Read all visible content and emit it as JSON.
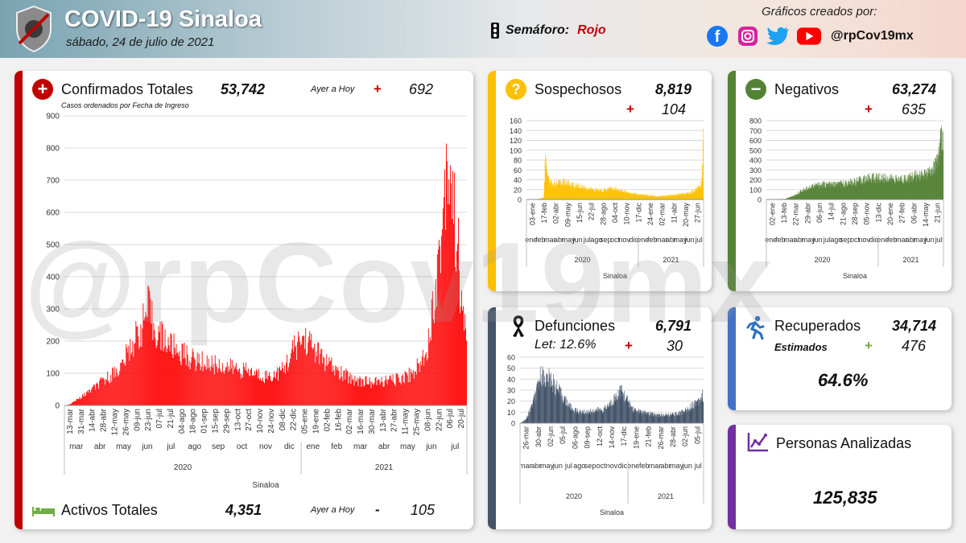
{
  "header": {
    "title": "COVID-19 Sinaloa",
    "date": "sábado, 24 de julio de 2021",
    "semaforo_label": "Semáforo:",
    "semaforo_value": "Rojo",
    "credits": "Gráficos creados por:",
    "handle": "@rpCov19mx",
    "icons": [
      "facebook-icon",
      "instagram-icon",
      "twitter-icon",
      "youtube-icon"
    ],
    "colors": {
      "facebook": "#1877f2",
      "instagram": "#d6249f",
      "twitter": "#1da1f2",
      "youtube": "#ff0000"
    }
  },
  "watermark": "@rpCov19mx",
  "confirmados": {
    "title": "Confirmados Totales",
    "total": "53,742",
    "ayer_label": "Ayer a Hoy",
    "sign": "+",
    "delta": "692",
    "subtitle": "Casos ordenados por Fecha de Ingreso",
    "color": "#c00000"
  },
  "activos": {
    "title": "Activos Totales",
    "total": "4,351",
    "ayer_label": "Ayer a Hoy",
    "sign": "-",
    "delta": "105"
  },
  "sospechosos": {
    "title": "Sospechosos",
    "total": "8,819",
    "sign": "+",
    "delta": "104",
    "color": "#ffc000"
  },
  "negativos": {
    "title": "Negativos",
    "total": "63,274",
    "sign": "+",
    "delta": "635",
    "color": "#548235"
  },
  "defunciones": {
    "title": "Defunciones",
    "total": "6,791",
    "letalidad": "Let: 12.6%",
    "sign": "+",
    "delta": "30",
    "color": "#44546a"
  },
  "recuperados": {
    "title": "Recuperados",
    "total": "34,714",
    "subtitle": "Estimados",
    "sign": "+",
    "delta": "476",
    "percent": "64.6%",
    "color": "#4472c4"
  },
  "analizadas": {
    "title": "Personas Analizadas",
    "total": "125,835",
    "color": "#7030a0"
  },
  "chart_data": [
    {
      "id": "confirmados",
      "type": "bar",
      "color": "#ff0000",
      "ylim": [
        0,
        900
      ],
      "yticks": [
        0,
        100,
        200,
        300,
        400,
        500,
        600,
        700,
        800,
        900
      ],
      "date_start": "2020-03-13",
      "date_end": "2021-07-23",
      "daily_profile": [
        [
          0,
          0
        ],
        [
          6,
          3
        ],
        [
          20,
          25
        ],
        [
          45,
          70
        ],
        [
          70,
          120
        ],
        [
          85,
          200
        ],
        [
          95,
          240
        ],
        [
          100,
          280
        ],
        [
          104,
          305
        ],
        [
          110,
          240
        ],
        [
          125,
          200
        ],
        [
          140,
          170
        ],
        [
          160,
          140
        ],
        [
          180,
          130
        ],
        [
          200,
          120
        ],
        [
          220,
          110
        ],
        [
          240,
          95
        ],
        [
          255,
          90
        ],
        [
          270,
          110
        ],
        [
          285,
          180
        ],
        [
          295,
          210
        ],
        [
          305,
          190
        ],
        [
          320,
          140
        ],
        [
          340,
          100
        ],
        [
          360,
          80
        ],
        [
          380,
          70
        ],
        [
          410,
          80
        ],
        [
          430,
          100
        ],
        [
          440,
          130
        ],
        [
          450,
          200
        ],
        [
          460,
          400
        ],
        [
          467,
          550
        ],
        [
          472,
          770
        ],
        [
          477,
          730
        ],
        [
          482,
          580
        ],
        [
          487,
          470
        ],
        [
          490,
          300
        ],
        [
          496,
          250
        ]
      ],
      "xtick_labels": [
        "13-mar",
        "31-mar",
        "14-abr",
        "28-abr",
        "12-may",
        "26-may",
        "09-jun",
        "23-jun",
        "07-jul",
        "21-jul",
        "04-ago",
        "18-ago",
        "01-sep",
        "15-sep",
        "29-sep",
        "13-oct",
        "27-oct",
        "10-nov",
        "24-nov",
        "08-dic",
        "22-dic",
        "05-ene",
        "19-ene",
        "02-feb",
        "16-feb",
        "02-mar",
        "16-mar",
        "30-mar",
        "13-abr",
        "27-abr",
        "11-may",
        "25-may",
        "08-jun",
        "22-jun",
        "06-jul",
        "20-jul"
      ],
      "months": [
        "mar",
        "abr",
        "may",
        "jun",
        "jul",
        "ago",
        "sep",
        "oct",
        "nov",
        "dic",
        "ene",
        "feb",
        "mar",
        "abr",
        "may",
        "jun",
        "jul"
      ],
      "years": [
        "2020",
        "2021"
      ],
      "xlabel": "Sinaloa"
    },
    {
      "id": "sospechosos",
      "type": "bar",
      "color": "#ffc000",
      "ylim": [
        0,
        160
      ],
      "yticks": [
        0,
        20,
        40,
        60,
        80,
        100,
        120,
        140,
        160
      ],
      "date_start": "2020-01-03",
      "date_end": "2021-07-23",
      "daily_profile": [
        [
          0,
          0
        ],
        [
          40,
          1
        ],
        [
          55,
          4
        ],
        [
          60,
          80
        ],
        [
          66,
          60
        ],
        [
          72,
          35
        ],
        [
          90,
          30
        ],
        [
          120,
          35
        ],
        [
          150,
          28
        ],
        [
          180,
          25
        ],
        [
          210,
          20
        ],
        [
          240,
          18
        ],
        [
          270,
          22
        ],
        [
          300,
          18
        ],
        [
          330,
          12
        ],
        [
          360,
          10
        ],
        [
          390,
          8
        ],
        [
          420,
          6
        ],
        [
          450,
          8
        ],
        [
          520,
          12
        ],
        [
          545,
          20
        ],
        [
          560,
          30
        ],
        [
          565,
          70
        ],
        [
          567,
          145
        ]
      ],
      "xtick_labels": [
        "03-ene",
        "17-feb",
        "02-abr",
        "09-may",
        "15-jun",
        "22-jul",
        "28-ago",
        "04-oct",
        "10-nov",
        "17-dic",
        "24-ene",
        "02-mar",
        "11-abr",
        "20-may",
        "27-jun"
      ],
      "months": [
        "ene",
        "feb",
        "mar",
        "abr",
        "may",
        "jun",
        "jul",
        "ago",
        "sep",
        "oct",
        "nov",
        "dic",
        "ene",
        "feb",
        "mar",
        "abr",
        "may",
        "jun",
        "jul"
      ],
      "years": [
        "2020",
        "2021"
      ],
      "xlabel": "Sinaloa"
    },
    {
      "id": "negativos",
      "type": "bar",
      "color": "#548235",
      "ylim": [
        0,
        800
      ],
      "yticks": [
        0,
        100,
        200,
        300,
        400,
        500,
        600,
        700,
        800
      ],
      "date_start": "2020-01-02",
      "date_end": "2021-07-23",
      "daily_profile": [
        [
          0,
          2
        ],
        [
          60,
          5
        ],
        [
          90,
          40
        ],
        [
          120,
          100
        ],
        [
          150,
          140
        ],
        [
          180,
          150
        ],
        [
          210,
          150
        ],
        [
          240,
          155
        ],
        [
          270,
          170
        ],
        [
          300,
          190
        ],
        [
          330,
          215
        ],
        [
          360,
          220
        ],
        [
          390,
          215
        ],
        [
          420,
          200
        ],
        [
          450,
          215
        ],
        [
          480,
          240
        ],
        [
          510,
          250
        ],
        [
          530,
          280
        ],
        [
          545,
          360
        ],
        [
          555,
          500
        ],
        [
          562,
          700
        ],
        [
          566,
          560
        ]
      ],
      "xtick_labels": [
        "02-ene",
        "13-feb",
        "22-mar",
        "29-abr",
        "06-jun",
        "14-jul",
        "21-ago",
        "28-sep",
        "05-nov",
        "13-dic",
        "20-ene",
        "27-feb",
        "06-abr",
        "14-may",
        "21-jun"
      ],
      "months": [
        "ene",
        "feb",
        "mar",
        "abr",
        "may",
        "jun",
        "jul",
        "ago",
        "sep",
        "oct",
        "nov",
        "dic",
        "ene",
        "feb",
        "mar",
        "abr",
        "may",
        "jun",
        "jul"
      ],
      "years": [
        "2020",
        "2021"
      ],
      "xlabel": "Sinaloa"
    },
    {
      "id": "defunciones",
      "type": "bar",
      "color": "#44546a",
      "ylim": [
        0,
        60
      ],
      "yticks": [
        0,
        10,
        20,
        30,
        40,
        50,
        60
      ],
      "date_start": "2020-03-26",
      "date_end": "2021-07-23",
      "daily_profile": [
        [
          0,
          0
        ],
        [
          15,
          3
        ],
        [
          30,
          15
        ],
        [
          45,
          30
        ],
        [
          55,
          45
        ],
        [
          65,
          40
        ],
        [
          80,
          40
        ],
        [
          100,
          30
        ],
        [
          120,
          20
        ],
        [
          140,
          12
        ],
        [
          160,
          10
        ],
        [
          180,
          10
        ],
        [
          200,
          12
        ],
        [
          220,
          12
        ],
        [
          240,
          18
        ],
        [
          255,
          25
        ],
        [
          265,
          30
        ],
        [
          280,
          22
        ],
        [
          300,
          12
        ],
        [
          320,
          10
        ],
        [
          350,
          8
        ],
        [
          380,
          7
        ],
        [
          410,
          8
        ],
        [
          440,
          12
        ],
        [
          460,
          18
        ],
        [
          484,
          25
        ]
      ],
      "xtick_labels": [
        "26-mar",
        "30-abr",
        "02-jun",
        "05-jul",
        "06-ago",
        "09-sep",
        "12-oct",
        "14-nov",
        "17-dic",
        "19-ene",
        "21-feb",
        "26-mar",
        "28-abr",
        "02-jun",
        "05-jul"
      ],
      "months": [
        "mar",
        "abr",
        "may",
        "jun",
        "jul",
        "ago",
        "sep",
        "oct",
        "nov",
        "dic",
        "ene",
        "feb",
        "mar",
        "abr",
        "may",
        "jun",
        "jul"
      ],
      "years": [
        "2020",
        "2021"
      ],
      "xlabel": "Sinaloa"
    }
  ]
}
